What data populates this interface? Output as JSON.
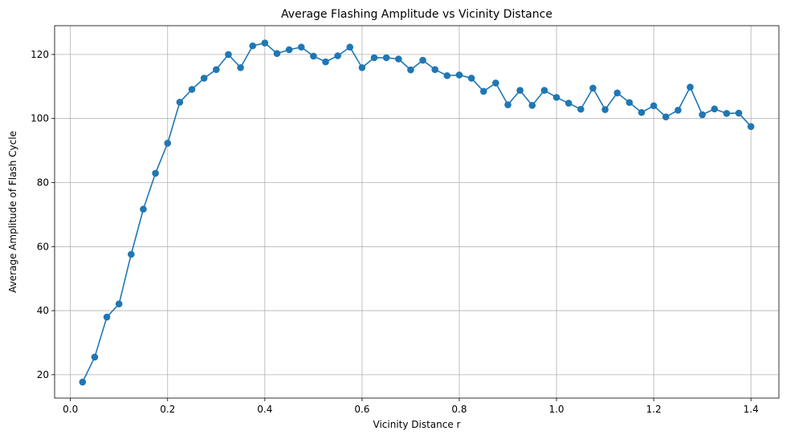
{
  "chart_data": {
    "type": "line",
    "title": "Average Flashing Amplitude vs Vicinity Distance",
    "xlabel": "Vicinity Distance r",
    "ylabel": "Average Amplitude of Flash Cycle",
    "xlim": [
      -0.0325,
      1.4575
    ],
    "ylim": [
      12.7,
      129.0
    ],
    "xticks": [
      0.0,
      0.2,
      0.4,
      0.6,
      0.8,
      1.0,
      1.2,
      1.4
    ],
    "xtick_labels": [
      "0.0",
      "0.2",
      "0.4",
      "0.6",
      "0.8",
      "1.0",
      "1.2",
      "1.4"
    ],
    "yticks": [
      20,
      40,
      60,
      80,
      100,
      120
    ],
    "ytick_labels": [
      "20",
      "40",
      "60",
      "80",
      "100",
      "120"
    ],
    "grid": true,
    "marker": "circle",
    "color": "#1f77b4",
    "series": [
      {
        "x": [
          0.025,
          0.05,
          0.075,
          0.1,
          0.125,
          0.15,
          0.175,
          0.2,
          0.225,
          0.25,
          0.275,
          0.3,
          0.325,
          0.35,
          0.375,
          0.4,
          0.425,
          0.45,
          0.475,
          0.5,
          0.525,
          0.55,
          0.575,
          0.6,
          0.625,
          0.65,
          0.675,
          0.7,
          0.725,
          0.75,
          0.775,
          0.8,
          0.825,
          0.85,
          0.875,
          0.9,
          0.925,
          0.95,
          0.975,
          1.0,
          1.025,
          1.05,
          1.075,
          1.1,
          1.125,
          1.15,
          1.175,
          1.2,
          1.225,
          1.25,
          1.275,
          1.3,
          1.325,
          1.35,
          1.375,
          1.4
        ],
        "y": [
          17.7,
          25.5,
          38.0,
          42.1,
          57.6,
          71.7,
          82.9,
          92.3,
          105.1,
          109.1,
          112.6,
          115.3,
          120.0,
          115.9,
          122.7,
          123.6,
          120.3,
          121.5,
          122.3,
          119.5,
          117.7,
          119.6,
          122.3,
          115.9,
          119.0,
          119.0,
          118.6,
          115.2,
          118.2,
          115.3,
          113.4,
          113.6,
          112.6,
          108.5,
          111.1,
          104.3,
          108.8,
          104.1,
          108.8,
          106.6,
          104.8,
          102.9,
          109.5,
          102.8,
          108.0,
          105.0,
          101.9,
          104.0,
          100.5,
          102.6,
          109.8,
          101.2,
          103.0,
          101.6,
          101.7,
          97.5
        ]
      }
    ]
  }
}
